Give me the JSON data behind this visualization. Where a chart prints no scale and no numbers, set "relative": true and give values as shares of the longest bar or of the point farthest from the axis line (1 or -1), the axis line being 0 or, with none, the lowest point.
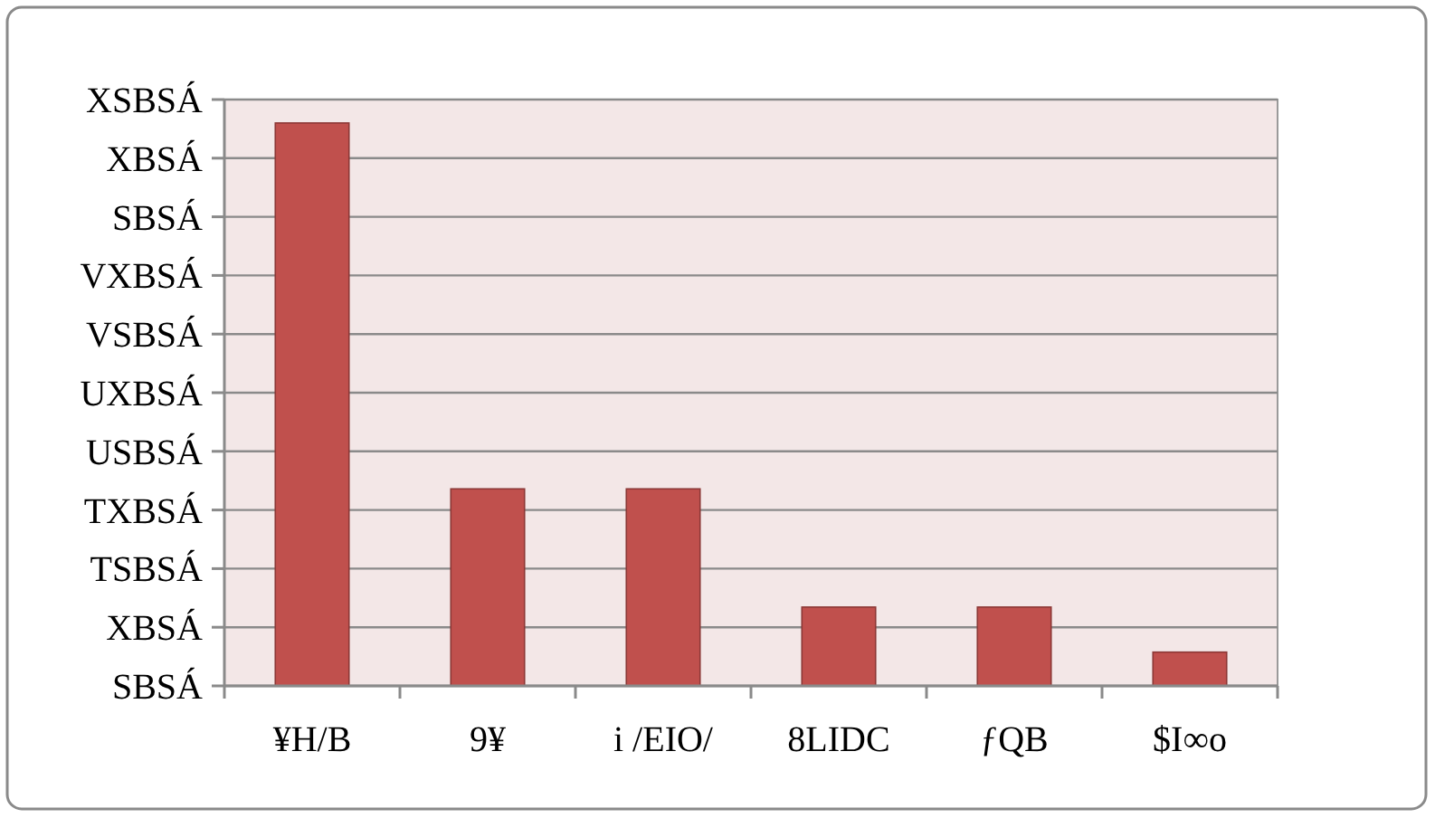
{
  "chart_data": {
    "type": "bar",
    "relative": true,
    "categories": [
      "¥H/B",
      "9¥",
      "i /EIO/",
      "8LIDC",
      "ƒQB",
      "$I∞o"
    ],
    "values": [
      1,
      0.35,
      0.35,
      0.14,
      0.14,
      0.06
    ],
    "color": "#c0504d",
    "annotations": [
      "XSBSÁ",
      "XBSÁ",
      "SBSÁ",
      "VXBSÁ",
      "VSBSÁ",
      "UXBSÁ",
      "USBSÁ",
      "TXBSÁ",
      "TSBSÁ",
      "XBSÁ",
      "SBSÁ"
    ],
    "grid": "y"
  }
}
